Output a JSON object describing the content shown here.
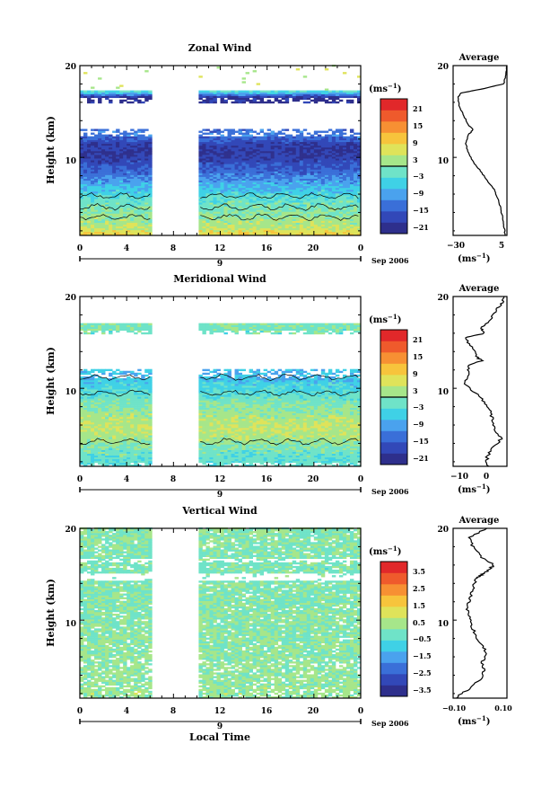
{
  "panels": [
    {
      "title": "Zonal Wind",
      "ylabel": "Height (km)",
      "yticks": [
        "20",
        "10"
      ],
      "xticks": [
        "0",
        "4",
        "8",
        "12",
        "16",
        "20",
        "0"
      ],
      "date_label": "Sep 2006",
      "day_label": "9",
      "unit": "(ms",
      "unit_exp": "−1",
      "colorbar_ticks": [
        "21",
        "15",
        "9",
        "3",
        "−3",
        "−9",
        "−15",
        "−21"
      ],
      "avg_title": "Average",
      "avg_xticks": [
        "−30",
        "5"
      ],
      "avg_yticks": [
        "20",
        "10"
      ],
      "avg_unit": "(ms",
      "avg_unit_exp": "−1"
    },
    {
      "title": "Meridional Wind",
      "ylabel": "Height (km)",
      "yticks": [
        "20",
        "10"
      ],
      "xticks": [
        "0",
        "4",
        "8",
        "12",
        "16",
        "20",
        "0"
      ],
      "date_label": "Sep 2006",
      "day_label": "9",
      "unit": "(ms",
      "unit_exp": "−1",
      "colorbar_ticks": [
        "21",
        "15",
        "9",
        "3",
        "−3",
        "−9",
        "−15",
        "−21"
      ],
      "avg_title": "Average",
      "avg_xticks": [
        "−10",
        "0"
      ],
      "avg_yticks": [
        "20",
        "10"
      ],
      "avg_unit": "(ms",
      "avg_unit_exp": "−1"
    },
    {
      "title": "Vertical Wind",
      "ylabel": "Height (km)",
      "yticks": [
        "20",
        "10"
      ],
      "xticks": [
        "0",
        "4",
        "8",
        "12",
        "16",
        "20",
        "0"
      ],
      "date_label": "Sep 2006",
      "day_label": "9",
      "unit": "(ms",
      "unit_exp": "−1",
      "colorbar_ticks": [
        "3.5",
        "2.5",
        "1.5",
        "0.5",
        "−0.5",
        "−1.5",
        "−2.5",
        "−3.5"
      ],
      "avg_title": "Average",
      "avg_xticks": [
        "−0.10",
        "0.10"
      ],
      "avg_yticks": [
        "20",
        "10"
      ],
      "avg_unit": "(ms",
      "avg_unit_exp": "−1",
      "xlabel": "Local Time"
    }
  ],
  "colormap": [
    "#2e2f8c",
    "#3248b8",
    "#3a6fd8",
    "#4aa2ee",
    "#3fd1e6",
    "#6fe3c8",
    "#a6e68a",
    "#dfe35a",
    "#f7c43c",
    "#f79033",
    "#ef5a2c",
    "#e1282a"
  ],
  "chart_data": [
    {
      "type": "heatmap",
      "title": "Zonal Wind",
      "ylabel": "Height (km)",
      "xlabel": "",
      "x_range_hours": [
        0,
        24
      ],
      "ylim_km": [
        1.5,
        20
      ],
      "data_gap_hours": [
        6.3,
        10.2
      ],
      "colorbar_range": [
        -24,
        24
      ],
      "profile_by_height": [
        {
          "h": 1.5,
          "v": 9
        },
        {
          "h": 2.5,
          "v": 3
        },
        {
          "h": 3.5,
          "v": 1
        },
        {
          "h": 4.5,
          "v": -1
        },
        {
          "h": 5.5,
          "v": -3
        },
        {
          "h": 6.5,
          "v": -7
        },
        {
          "h": 7.5,
          "v": -11
        },
        {
          "h": 8.5,
          "v": -15
        },
        {
          "h": 9.5,
          "v": -18
        },
        {
          "h": 10.5,
          "v": -21
        },
        {
          "h": 11.5,
          "v": -19
        },
        {
          "h": 12.5,
          "v": -13
        },
        {
          "h": 16.5,
          "v": -22
        },
        {
          "h": 17.5,
          "v": 4
        }
      ]
    },
    {
      "type": "line",
      "title": "Average",
      "xlabel": "(ms−1)",
      "ylabel": "",
      "xlim": [
        -30,
        5
      ],
      "ylim": [
        1.5,
        20
      ],
      "series": [
        {
          "x": [
            4,
            3,
            2,
            1,
            -1,
            -3,
            -8,
            -12,
            -17,
            -20,
            -22,
            -20,
            -17,
            -20,
            -23,
            -26,
            -27,
            -25,
            -10,
            3,
            4,
            5
          ],
          "y": [
            1.5,
            2.5,
            3.5,
            4.5,
            5.5,
            6.5,
            7.5,
            8.5,
            9.5,
            10.5,
            11.5,
            12.5,
            13.0,
            13.5,
            14.5,
            15.5,
            16.5,
            17.0,
            17.5,
            18.0,
            19.0,
            20.0
          ]
        }
      ]
    },
    {
      "type": "heatmap",
      "title": "Meridional Wind",
      "ylabel": "Height (km)",
      "xlabel": "",
      "x_range_hours": [
        0,
        24
      ],
      "ylim_km": [
        1.5,
        20
      ],
      "data_gap_hours": [
        6.3,
        10.2
      ],
      "colorbar_range": [
        -24,
        24
      ],
      "profile_by_height": [
        {
          "h": 2.5,
          "v": -3
        },
        {
          "h": 3.5,
          "v": -1
        },
        {
          "h": 4.5,
          "v": 2
        },
        {
          "h": 5.5,
          "v": 4
        },
        {
          "h": 6.5,
          "v": 3
        },
        {
          "h": 7.5,
          "v": 1
        },
        {
          "h": 8.5,
          "v": -1
        },
        {
          "h": 9.5,
          "v": -4
        },
        {
          "h": 10.5,
          "v": -6
        },
        {
          "h": 11.5,
          "v": -8
        },
        {
          "h": 16.5,
          "v": -1
        }
      ]
    },
    {
      "type": "line",
      "title": "Average",
      "xlabel": "(ms−1)",
      "ylabel": "",
      "xlim": [
        -13,
        6
      ],
      "ylim": [
        1.5,
        20
      ],
      "series": [
        {
          "x": [
            -1,
            -1,
            1,
            4,
            2,
            1,
            0,
            -2,
            -5,
            -9,
            -7,
            -8,
            -3,
            -5,
            -6,
            -9,
            -2,
            -3,
            0,
            2,
            4,
            5
          ],
          "y": [
            1.5,
            2.5,
            3.5,
            4.5,
            5.5,
            6.5,
            7.5,
            8.5,
            9.5,
            10.5,
            11.5,
            12.5,
            13.0,
            13.5,
            14.5,
            15.5,
            16.0,
            16.5,
            17.5,
            18.5,
            19.2,
            20.0
          ]
        }
      ]
    },
    {
      "type": "heatmap",
      "title": "Vertical Wind",
      "ylabel": "Height (km)",
      "xlabel": "Local Time",
      "x_range_hours": [
        0,
        24
      ],
      "ylim_km": [
        1.5,
        20
      ],
      "data_gap_hours": [
        6.3,
        10.2
      ],
      "colorbar_range": [
        -4,
        4
      ],
      "profile_by_height": [
        {
          "h": 2.5,
          "v": 0.2
        },
        {
          "h": 5.5,
          "v": 0.1
        },
        {
          "h": 10.5,
          "v": 0.0
        },
        {
          "h": 15.5,
          "v": -0.2
        },
        {
          "h": 18.5,
          "v": 0.0
        }
      ]
    },
    {
      "type": "line",
      "title": "Average",
      "xlabel": "(ms−1)",
      "ylabel": "",
      "xlim": [
        -0.12,
        0.12
      ],
      "ylim": [
        1.5,
        20
      ],
      "series": [
        {
          "x": [
            -0.11,
            -0.05,
            0.0,
            0.02,
            0.01,
            0.03,
            0.0,
            -0.02,
            -0.04,
            -0.05,
            -0.06,
            -0.04,
            -0.03,
            -0.02,
            0.01,
            0.04,
            0.06,
            0.0,
            -0.03,
            -0.05,
            0.03
          ],
          "y": [
            1.5,
            2.5,
            3.5,
            4.5,
            5.5,
            6.5,
            7.5,
            8.5,
            9.5,
            10.5,
            11.5,
            12.5,
            13.5,
            14.5,
            15.0,
            15.5,
            16.0,
            17.0,
            18.0,
            19.0,
            20.0
          ]
        }
      ]
    }
  ]
}
